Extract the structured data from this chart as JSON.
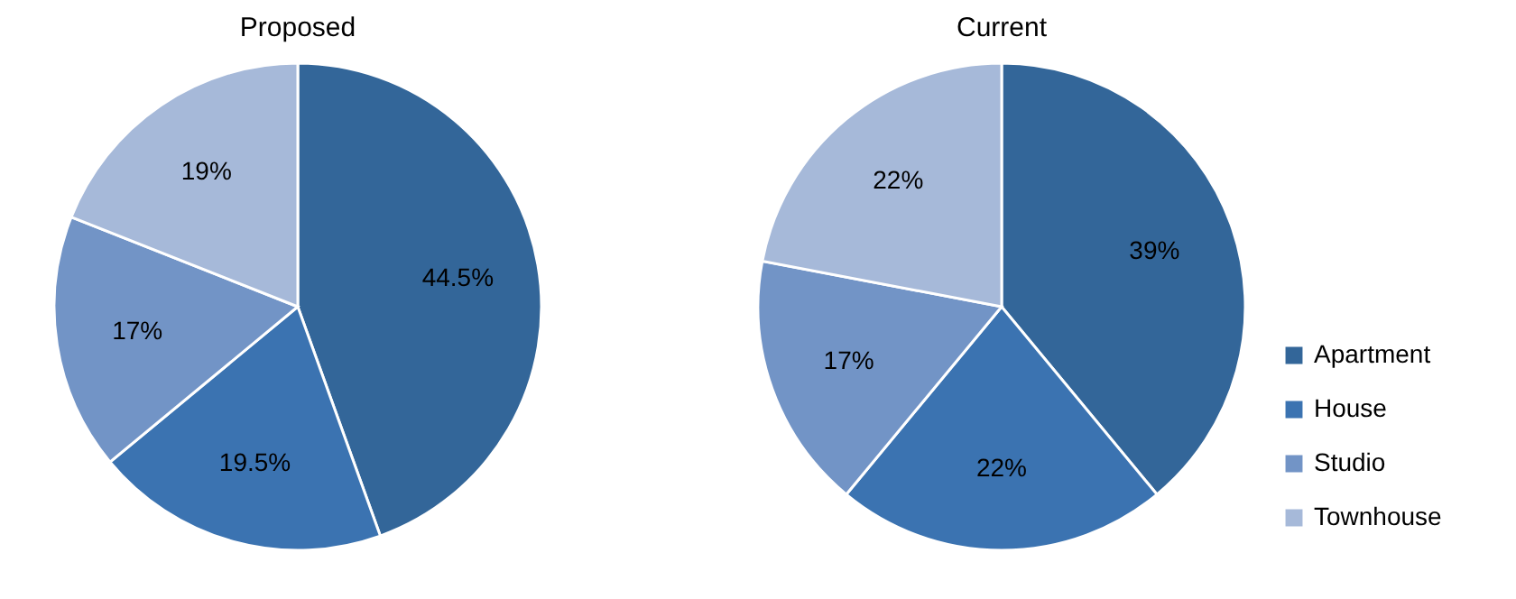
{
  "chart_data": [
    {
      "type": "pie",
      "title": "Proposed",
      "categories": [
        null,
        null,
        null,
        null
      ],
      "values": [
        44.5,
        19.5,
        17,
        19
      ],
      "colors": [
        "#336699",
        "#3b73b1",
        "#7294c6",
        "#a6b9d9"
      ],
      "value_labels": [
        "44.5%",
        "19.5%",
        "17%",
        "19%"
      ],
      "legend": false
    },
    {
      "type": "pie",
      "title": "Current",
      "categories": [
        "Apartment",
        "House",
        "Studio",
        "Townhouse"
      ],
      "values": [
        39,
        22,
        17,
        22
      ],
      "colors": [
        "#336699",
        "#3b73b1",
        "#7294c6",
        "#a6b9d9"
      ],
      "value_labels": [
        "39%",
        "22%",
        "17%",
        "22%"
      ],
      "legend": "right"
    }
  ]
}
